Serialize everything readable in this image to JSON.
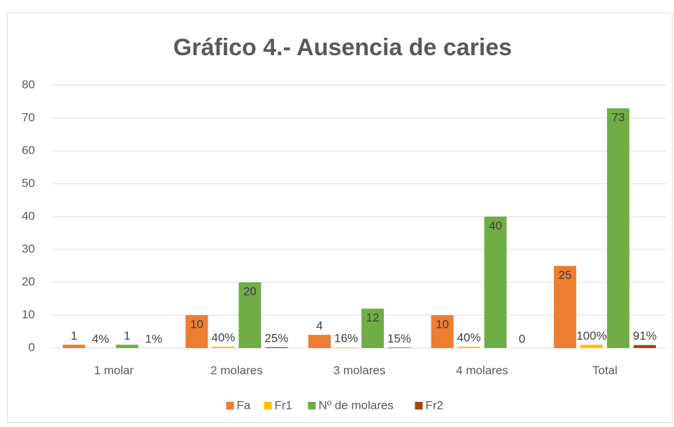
{
  "chart_data": {
    "type": "bar",
    "title": "Gráfico  4.- Ausencia de caries",
    "categories": [
      "1 molar",
      "2 molares",
      "3 molares",
      "4 molares",
      "Total"
    ],
    "series": [
      {
        "name": "Fa",
        "color": "#ed7d31",
        "values": [
          1,
          10,
          4,
          10,
          25
        ]
      },
      {
        "name": "Fr1",
        "color": "#ffc000",
        "values": [
          0.04,
          0.4,
          0.16,
          0.4,
          1
        ],
        "value_labels": [
          "4%",
          "40%",
          "16%",
          "40%",
          "100%"
        ]
      },
      {
        "name": "Nº de molares",
        "color": "#70ad47",
        "values": [
          1,
          20,
          12,
          40,
          73
        ]
      },
      {
        "name": "Fr2",
        "color": "#9e480e",
        "values": [
          0.01,
          0.25,
          0.15,
          0,
          0.91
        ],
        "value_labels": [
          "1%",
          "25%",
          "15%",
          "0",
          "91%"
        ]
      }
    ],
    "ylim": [
      0,
      80
    ],
    "yticks": [
      0,
      10,
      20,
      30,
      40,
      50,
      60,
      70,
      80
    ],
    "grid": true,
    "legend": "bottom"
  }
}
